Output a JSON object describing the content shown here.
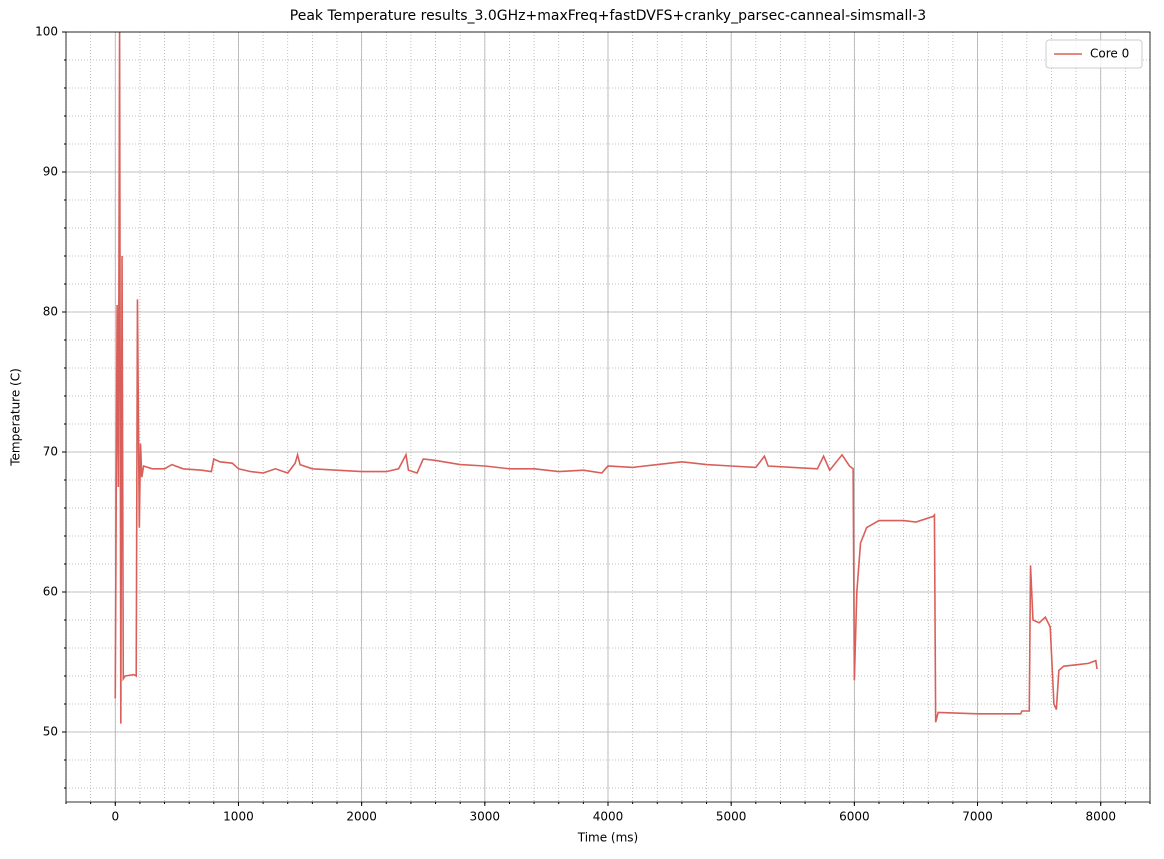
{
  "chart_data": {
    "type": "line",
    "title": "Peak Temperature results_3.0GHz+maxFreq+fastDVFS+cranky_parsec-canneal-simsmall-3",
    "xlabel": "Time (ms)",
    "ylabel": "Temperature (C)",
    "x": [
      0,
      15,
      25,
      35,
      45,
      55,
      65,
      80,
      150,
      170,
      180,
      195,
      205,
      215,
      230,
      300,
      400,
      460,
      550,
      700,
      780,
      800,
      850,
      950,
      1000,
      1100,
      1200,
      1300,
      1400,
      1460,
      1480,
      1500,
      1600,
      1800,
      2000,
      2200,
      2300,
      2360,
      2380,
      2450,
      2500,
      2600,
      2800,
      3000,
      3200,
      3400,
      3600,
      3800,
      3950,
      4000,
      4200,
      4400,
      4600,
      4800,
      5000,
      5200,
      5270,
      5300,
      5500,
      5700,
      5750,
      5800,
      5900,
      5960,
      5990,
      6000,
      6020,
      6050,
      6100,
      6200,
      6400,
      6500,
      6640,
      6650,
      6660,
      6680,
      7000,
      7350,
      7360,
      7420,
      7430,
      7450,
      7500,
      7550,
      7590,
      7620,
      7640,
      7660,
      7700,
      7800,
      7900,
      7960,
      7970
    ],
    "series": [
      {
        "name": "Core 0",
        "color": "#d9605a",
        "values": [
          52.4,
          80.5,
          67.5,
          100,
          50.6,
          84,
          53.8,
          54,
          54.1,
          54,
          80.9,
          64.6,
          70.6,
          68.2,
          69,
          68.8,
          68.8,
          69.1,
          68.8,
          68.7,
          68.6,
          69.5,
          69.3,
          69.2,
          68.8,
          68.6,
          68.5,
          68.8,
          68.5,
          69.2,
          69.8,
          69.1,
          68.8,
          68.7,
          68.6,
          68.6,
          68.8,
          69.8,
          68.7,
          68.5,
          69.5,
          69.4,
          69.1,
          69,
          68.8,
          68.8,
          68.6,
          68.7,
          68.5,
          69,
          68.9,
          69.1,
          69.3,
          69.1,
          69,
          68.9,
          69.7,
          69,
          68.9,
          68.8,
          69.7,
          68.7,
          69.8,
          69,
          68.8,
          53.7,
          60,
          63.5,
          64.6,
          65.1,
          65.1,
          65,
          65.4,
          65.5,
          50.7,
          51.4,
          51.3,
          51.3,
          51.5,
          51.5,
          61.9,
          58,
          57.8,
          58.2,
          57.5,
          52,
          51.6,
          54.4,
          54.7,
          54.8,
          54.9,
          55.1,
          54.5
        ]
      }
    ],
    "xlim": [
      -400,
      8400
    ],
    "ylim": [
      45,
      100
    ],
    "xticks": [
      0,
      1000,
      2000,
      3000,
      4000,
      5000,
      6000,
      7000,
      8000
    ],
    "yticks": [
      50,
      60,
      70,
      80,
      90,
      100
    ],
    "xminorticks": [
      -400,
      -200,
      0,
      200,
      400,
      600,
      800,
      1000,
      1200,
      1400,
      1600,
      1800,
      2000,
      2200,
      2400,
      2600,
      2800,
      3000,
      3200,
      3400,
      3600,
      3800,
      4000,
      4200,
      4400,
      4600,
      4800,
      5000,
      5200,
      5400,
      5600,
      5800,
      6000,
      6200,
      6400,
      6600,
      6800,
      7000,
      7200,
      7400,
      7600,
      7800,
      8000,
      8200,
      8400
    ],
    "yminorticks": [
      46,
      48,
      50,
      52,
      54,
      56,
      58,
      60,
      62,
      64,
      66,
      68,
      70,
      72,
      74,
      76,
      78,
      80,
      82,
      84,
      86,
      88,
      90,
      92,
      94,
      96,
      98,
      100
    ],
    "grid": true,
    "legend": "upper right"
  }
}
